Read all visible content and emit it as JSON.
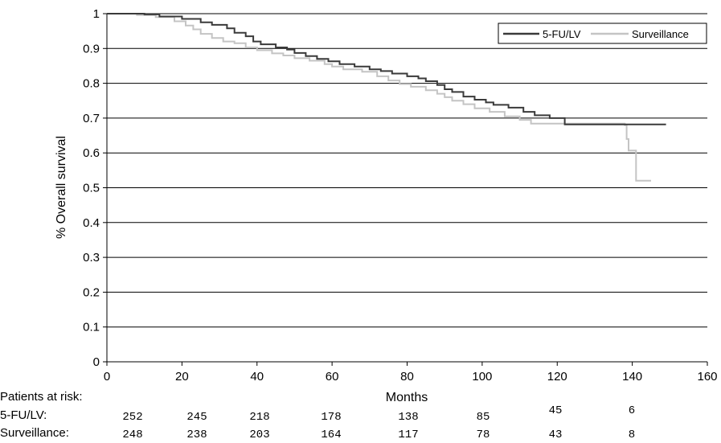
{
  "chart_data": {
    "type": "line",
    "title": "",
    "xlabel": "Months",
    "ylabel": "% Overall survival",
    "xlim": [
      0,
      160
    ],
    "ylim": [
      0,
      1
    ],
    "x_ticks": [
      "0",
      "20",
      "40",
      "60",
      "80",
      "100",
      "120",
      "140",
      "160"
    ],
    "y_ticks": [
      "0",
      "0.1",
      "0.2",
      "0.3",
      "0.4",
      "0.5",
      "0.6",
      "0.7",
      "0.8",
      "0.9",
      "1"
    ],
    "grid": "horizontal",
    "legend_position": "top-right",
    "colors": {
      "5-FU/LV": "#3a3a3a",
      "Surveillance": "#c4c4c4"
    },
    "series": [
      {
        "name": "5-FU/LV",
        "step": true,
        "points": [
          [
            0,
            1.0
          ],
          [
            10,
            0.998
          ],
          [
            14,
            0.992
          ],
          [
            20,
            0.985
          ],
          [
            25,
            0.975
          ],
          [
            28,
            0.968
          ],
          [
            32,
            0.958
          ],
          [
            34,
            0.945
          ],
          [
            37,
            0.935
          ],
          [
            39,
            0.92
          ],
          [
            41,
            0.912
          ],
          [
            45,
            0.903
          ],
          [
            48,
            0.897
          ],
          [
            50,
            0.887
          ],
          [
            53,
            0.878
          ],
          [
            56,
            0.87
          ],
          [
            59,
            0.863
          ],
          [
            62,
            0.855
          ],
          [
            66,
            0.848
          ],
          [
            70,
            0.84
          ],
          [
            73,
            0.835
          ],
          [
            76,
            0.828
          ],
          [
            80,
            0.82
          ],
          [
            83,
            0.814
          ],
          [
            85,
            0.806
          ],
          [
            88,
            0.795
          ],
          [
            90,
            0.783
          ],
          [
            92,
            0.775
          ],
          [
            95,
            0.762
          ],
          [
            98,
            0.753
          ],
          [
            101,
            0.745
          ],
          [
            103,
            0.738
          ],
          [
            107,
            0.73
          ],
          [
            111,
            0.718
          ],
          [
            114,
            0.708
          ],
          [
            118,
            0.7
          ],
          [
            122,
            0.682
          ],
          [
            149,
            0.682
          ]
        ]
      },
      {
        "name": "Surveillance",
        "step": true,
        "points": [
          [
            0,
            1.0
          ],
          [
            8,
            0.996
          ],
          [
            13,
            0.99
          ],
          [
            18,
            0.978
          ],
          [
            21,
            0.966
          ],
          [
            23,
            0.955
          ],
          [
            25,
            0.942
          ],
          [
            28,
            0.93
          ],
          [
            31,
            0.92
          ],
          [
            34,
            0.915
          ],
          [
            37,
            0.903
          ],
          [
            40,
            0.895
          ],
          [
            44,
            0.886
          ],
          [
            47,
            0.88
          ],
          [
            50,
            0.872
          ],
          [
            54,
            0.865
          ],
          [
            58,
            0.855
          ],
          [
            60,
            0.848
          ],
          [
            63,
            0.84
          ],
          [
            68,
            0.833
          ],
          [
            72,
            0.82
          ],
          [
            75,
            0.808
          ],
          [
            78,
            0.798
          ],
          [
            81,
            0.79
          ],
          [
            85,
            0.78
          ],
          [
            88,
            0.77
          ],
          [
            90,
            0.76
          ],
          [
            92,
            0.75
          ],
          [
            95,
            0.74
          ],
          [
            98,
            0.728
          ],
          [
            102,
            0.718
          ],
          [
            106,
            0.705
          ],
          [
            110,
            0.695
          ],
          [
            113,
            0.684
          ],
          [
            138,
            0.68
          ],
          [
            138.5,
            0.64
          ],
          [
            139,
            0.607
          ],
          [
            141,
            0.52
          ],
          [
            145,
            0.52
          ]
        ]
      }
    ]
  },
  "risk_table": {
    "title": "Patients at risk:",
    "rows": [
      {
        "label": "5-FU/LV:",
        "values": [
          "252",
          "245",
          "218",
          "178",
          "138",
          "85",
          "45",
          "6"
        ]
      },
      {
        "label": "Surveillance:",
        "values": [
          "248",
          "238",
          "203",
          "164",
          "117",
          "78",
          "43",
          "8"
        ]
      }
    ]
  }
}
